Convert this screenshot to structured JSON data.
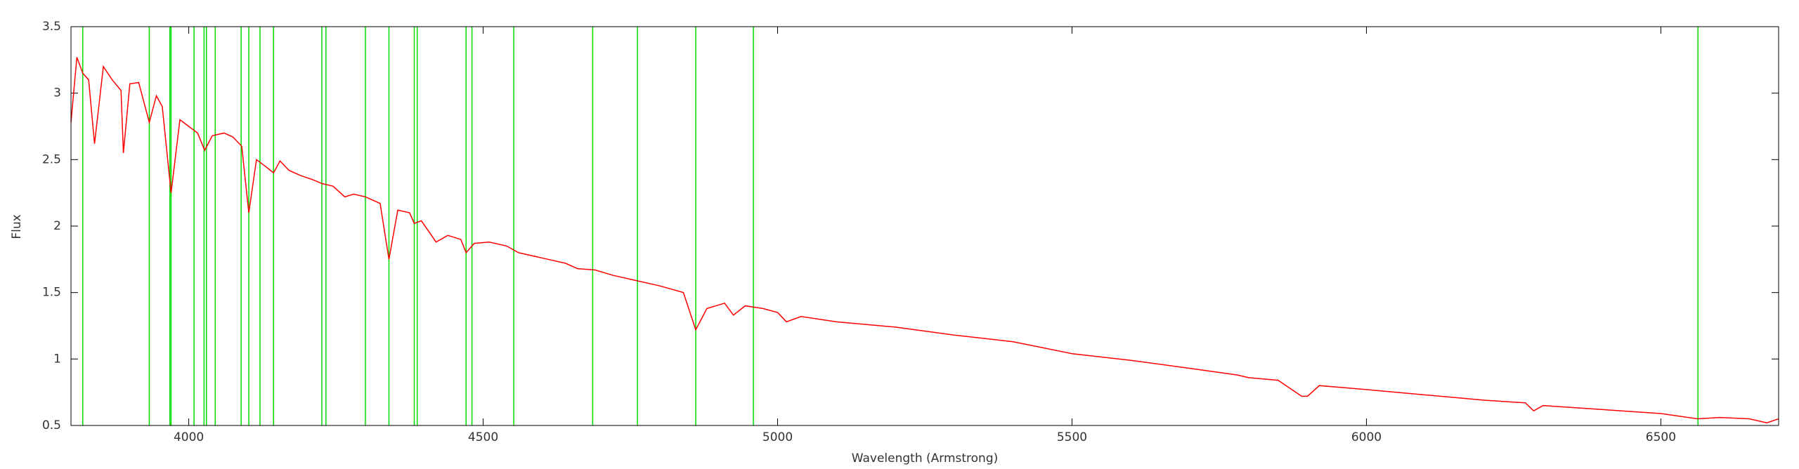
{
  "chart_data": {
    "type": "line",
    "x_label": "Wavelength (Armstrong)",
    "y_label": "Flux",
    "xlim": [
      3800,
      6700
    ],
    "ylim": [
      0.5,
      3.5
    ],
    "xticks": [
      4000,
      4500,
      5000,
      5500,
      6000,
      6500
    ],
    "yticks": [
      0.5,
      1,
      1.5,
      2,
      2.5,
      3,
      3.5
    ],
    "color": "#ff0000",
    "x": [
      3800,
      3810,
      3820,
      3830,
      3840,
      3855,
      3870,
      3885,
      3889,
      3900,
      3915,
      3933,
      3945,
      3955,
      3970,
      3985,
      4000,
      4015,
      4027,
      4040,
      4060,
      4075,
      4090,
      4102,
      4115,
      4130,
      4144,
      4155,
      4170,
      4190,
      4210,
      4226,
      4245,
      4265,
      4280,
      4300,
      4325,
      4340,
      4355,
      4375,
      4383,
      4395,
      4420,
      4440,
      4462,
      4471,
      4485,
      4510,
      4540,
      4560,
      4600,
      4640,
      4660,
      4690,
      4720,
      4750,
      4800,
      4840,
      4861,
      4880,
      4910,
      4925,
      4945,
      4975,
      5000,
      5015,
      5040,
      5100,
      5200,
      5300,
      5400,
      5500,
      5600,
      5700,
      5780,
      5800,
      5850,
      5890,
      5900,
      5920,
      6000,
      6100,
      6200,
      6270,
      6284,
      6300,
      6400,
      6500,
      6563,
      6600,
      6650,
      6680,
      6700
    ],
    "values": [
      2.78,
      3.27,
      3.15,
      3.1,
      2.62,
      3.2,
      3.1,
      3.02,
      2.55,
      3.07,
      3.08,
      2.78,
      2.98,
      2.9,
      2.25,
      2.8,
      2.75,
      2.7,
      2.57,
      2.68,
      2.7,
      2.67,
      2.6,
      2.1,
      2.5,
      2.45,
      2.4,
      2.49,
      2.42,
      2.38,
      2.35,
      2.32,
      2.3,
      2.22,
      2.24,
      2.22,
      2.17,
      1.75,
      2.12,
      2.1,
      2.02,
      2.04,
      1.88,
      1.93,
      1.9,
      1.8,
      1.87,
      1.88,
      1.85,
      1.8,
      1.76,
      1.72,
      1.68,
      1.67,
      1.63,
      1.6,
      1.55,
      1.5,
      1.22,
      1.38,
      1.42,
      1.33,
      1.4,
      1.38,
      1.35,
      1.28,
      1.32,
      1.28,
      1.24,
      1.18,
      1.13,
      1.04,
      0.99,
      0.93,
      0.88,
      0.86,
      0.84,
      0.72,
      0.72,
      0.8,
      0.77,
      0.73,
      0.69,
      0.67,
      0.61,
      0.65,
      0.62,
      0.59,
      0.55,
      0.56,
      0.55,
      0.52,
      0.55
    ],
    "reference_lines": {
      "color": "#00dd00",
      "x": [
        3820,
        3933,
        3968,
        3970,
        4009,
        4026,
        4030,
        4045,
        4089,
        4102,
        4121,
        4144,
        4226,
        4233,
        4300,
        4340,
        4383,
        4388,
        4471,
        4481,
        4552,
        4686,
        4762,
        4861,
        4959,
        6563
      ]
    }
  }
}
